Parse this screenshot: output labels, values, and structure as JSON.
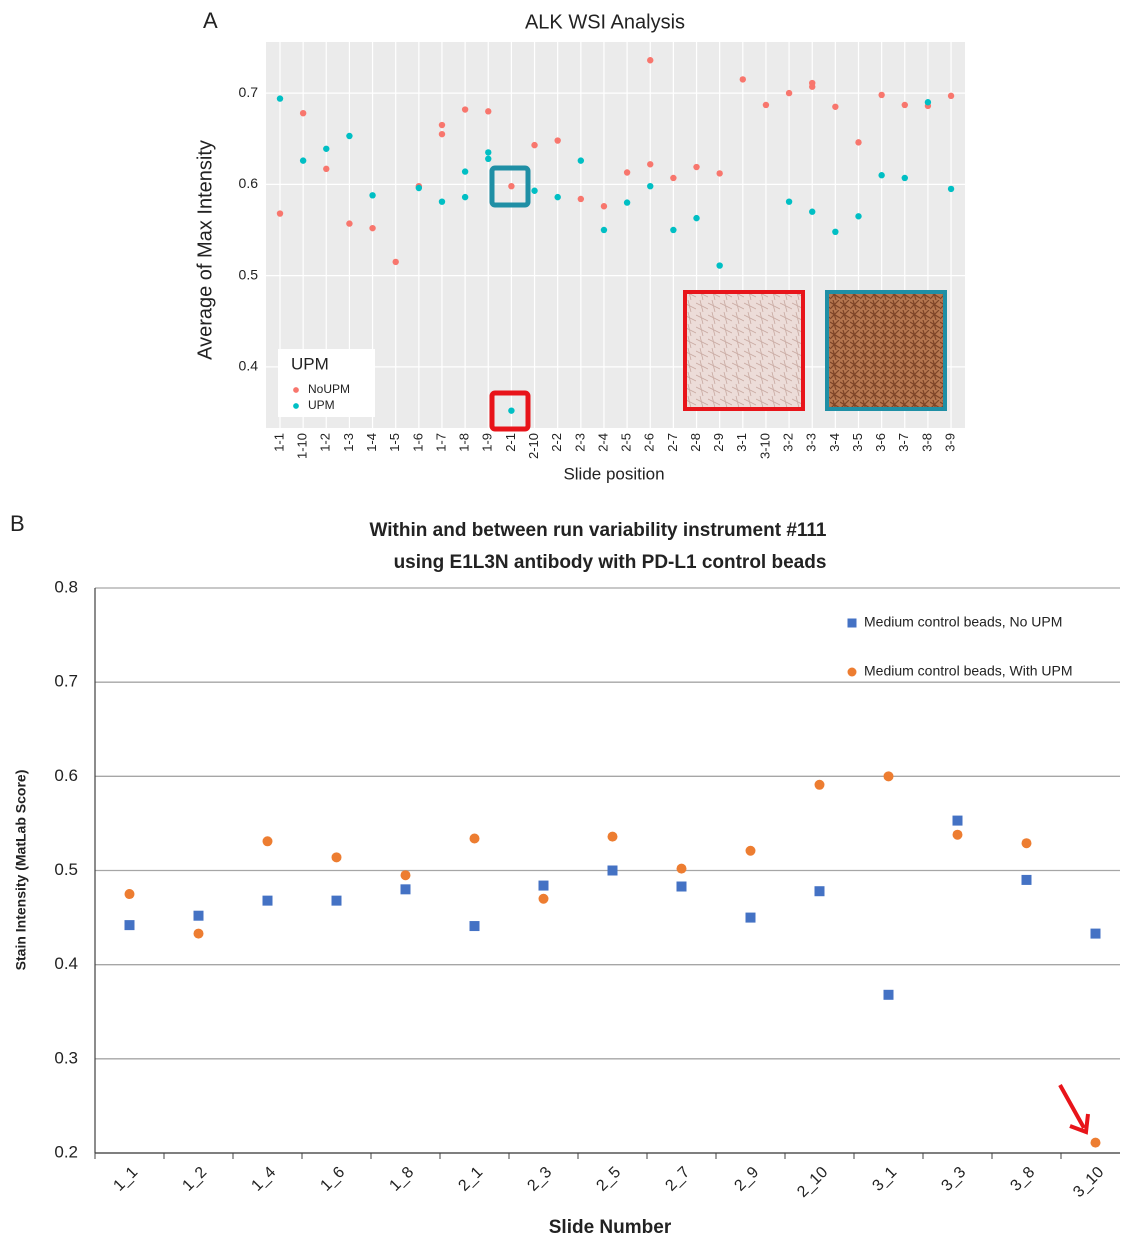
{
  "chart_data": [
    {
      "type": "scatter",
      "panel_label": "A",
      "title": "ALK WSI Analysis",
      "x_label": "Slide position",
      "y_label": "Average of Max Intensity",
      "categories": [
        "1-1",
        "1-10",
        "1-2",
        "1-3",
        "1-4",
        "1-5",
        "1-6",
        "1-7",
        "1-8",
        "1-9",
        "2-1",
        "2-10",
        "2-2",
        "2-3",
        "2-4",
        "2-5",
        "2-6",
        "2-7",
        "2-8",
        "2-9",
        "3-1",
        "3-10",
        "3-2",
        "3-3",
        "3-4",
        "3-5",
        "3-6",
        "3-7",
        "3-8",
        "3-9"
      ],
      "ylim": [
        0.333,
        0.756
      ],
      "yticks": [
        0.4,
        0.5,
        0.6,
        0.7
      ],
      "grid": true,
      "legend_title": "UPM",
      "legend": "lower left",
      "series": [
        {
          "name": "NoUPM",
          "color": "#f8766d",
          "x": [
            "1-1",
            "1-10",
            "1-2",
            "1-3",
            "1-4",
            "1-5",
            "1-6",
            "1-7",
            "1-7",
            "1-8",
            "1-9",
            "2-1",
            "2-10",
            "2-2",
            "2-3",
            "2-4",
            "2-5",
            "2-6",
            "2-6",
            "2-7",
            "2-8",
            "2-9",
            "3-1",
            "3-10",
            "3-2",
            "3-3",
            "3-3",
            "3-4",
            "3-5",
            "3-6",
            "3-7",
            "3-8",
            "3-9"
          ],
          "values": [
            0.568,
            0.678,
            0.617,
            0.557,
            0.552,
            0.515,
            0.598,
            0.665,
            0.655,
            0.682,
            0.68,
            0.598,
            0.643,
            0.648,
            0.584,
            0.576,
            0.613,
            0.622,
            0.736,
            0.607,
            0.619,
            0.612,
            0.715,
            0.687,
            0.7,
            0.711,
            0.707,
            0.685,
            0.646,
            0.698,
            0.687,
            0.686,
            0.697
          ]
        },
        {
          "name": "UPM",
          "color": "#00bfc4",
          "x": [
            "1-1",
            "1-10",
            "1-2",
            "1-3",
            "1-4",
            "1-6",
            "1-7",
            "1-8",
            "1-8",
            "1-9",
            "1-9",
            "2-1",
            "2-10",
            "2-2",
            "2-3",
            "2-4",
            "2-5",
            "2-6",
            "2-7",
            "2-8",
            "2-9",
            "3-2",
            "3-3",
            "3-4",
            "3-5",
            "3-6",
            "3-7",
            "3-8",
            "3-9"
          ],
          "values": [
            0.694,
            0.626,
            0.639,
            0.653,
            0.588,
            0.596,
            0.581,
            0.614,
            0.586,
            0.635,
            0.628,
            0.352,
            0.593,
            0.586,
            0.626,
            0.55,
            0.58,
            0.598,
            0.55,
            0.563,
            0.511,
            0.581,
            0.57,
            0.548,
            0.565,
            0.61,
            0.607,
            0.69,
            0.595
          ]
        }
      ]
    },
    {
      "type": "scatter",
      "panel_label": "B",
      "title": [
        "Within and between run variability instrument #111",
        "using E1L3N antibody with PD-L1 control beads"
      ],
      "x_label": "Slide Number",
      "y_label": "Stain Intensity (MatLab Score)",
      "categories": [
        "1_1",
        "1_2",
        "1_4",
        "1_6",
        "1_8",
        "2_1",
        "2_3",
        "2_5",
        "2_7",
        "2_9",
        "2_10",
        "3_1",
        "3_3",
        "3_8",
        "3_10"
      ],
      "ylim": [
        0.2,
        0.8
      ],
      "yticks": [
        0.2,
        0.3,
        0.4,
        0.5,
        0.6,
        0.7,
        0.8
      ],
      "grid": true,
      "legend": "upper right",
      "series": [
        {
          "name": "Medium control beads, No UPM",
          "color": "#4472c4",
          "marker": "square",
          "values": [
            0.442,
            0.452,
            0.468,
            0.468,
            0.48,
            0.441,
            0.484,
            0.5,
            0.483,
            0.45,
            0.478,
            0.368,
            0.553,
            0.49,
            0.433
          ]
        },
        {
          "name": "Medium control beads, With UPM",
          "color": "#ed7d31",
          "marker": "circle",
          "values": [
            0.475,
            0.433,
            0.531,
            0.514,
            0.495,
            0.534,
            0.47,
            0.536,
            0.502,
            0.521,
            0.591,
            0.6,
            0.538,
            0.529,
            0.211
          ]
        }
      ]
    }
  ]
}
